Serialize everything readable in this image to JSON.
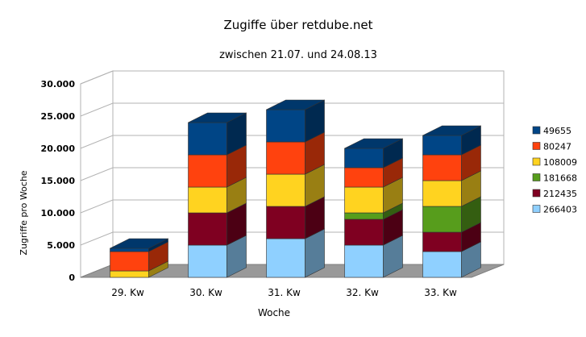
{
  "chart_data": {
    "type": "bar",
    "stacked": true,
    "three_d": true,
    "title": "Zugiffe über retdube.net",
    "subtitle": "zwischen 21.07. und 24.08.13",
    "xlabel": "Woche",
    "ylabel": "Zugriffe pro Woche",
    "ylim": [
      0,
      30000
    ],
    "yticks": [
      "0",
      "5.000",
      "10.000",
      "15.000",
      "20.000",
      "25.000",
      "30.000"
    ],
    "categories": [
      "29. Kw",
      "30. Kw",
      "31. Kw",
      "32. Kw",
      "33. Kw"
    ],
    "grid": true,
    "legend_position": "right",
    "series": [
      {
        "name": "266403",
        "color": "#8fd0ff",
        "values": [
          0,
          5000,
          6000,
          5000,
          4000
        ]
      },
      {
        "name": "212435",
        "color": "#7f0021",
        "values": [
          0,
          5000,
          5000,
          4000,
          3000
        ]
      },
      {
        "name": "181668",
        "color": "#579d1c",
        "values": [
          0,
          0,
          0,
          1000,
          4000
        ]
      },
      {
        "name": "108009",
        "color": "#ffd320",
        "values": [
          1000,
          4000,
          5000,
          4000,
          4000
        ]
      },
      {
        "name": "80247",
        "color": "#ff420e",
        "values": [
          3000,
          5000,
          5000,
          3000,
          4000
        ]
      },
      {
        "name": "49655",
        "color": "#004586",
        "values": [
          500,
          5000,
          5000,
          3000,
          3000
        ]
      }
    ]
  }
}
